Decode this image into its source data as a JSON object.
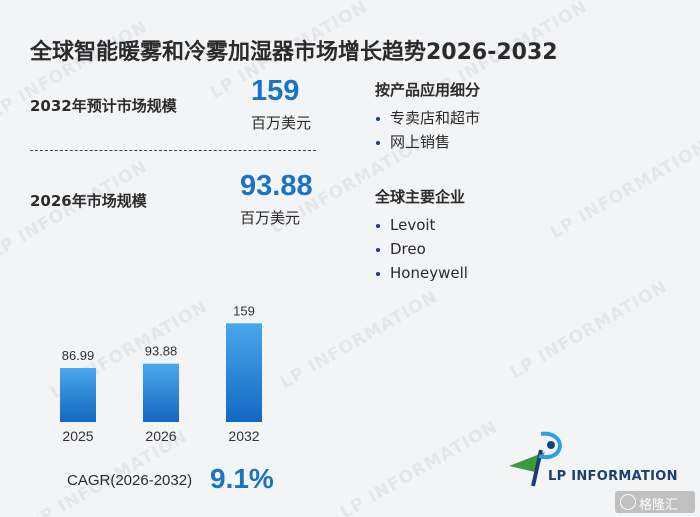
{
  "title": "全球智能暖雾和冷雾加湿器市场增长趋势2026-2032",
  "forecast": {
    "label": "2032年预计市场规模",
    "value": "159",
    "unit": "百万美元"
  },
  "base": {
    "label": "2026年市场规模",
    "value": "93.88",
    "unit": "百万美元"
  },
  "by_application": {
    "heading": "按产品应用细分",
    "items": [
      "专卖店和超市",
      "网上销售"
    ]
  },
  "companies": {
    "heading": "全球主要企业",
    "items": [
      "Levoit",
      "Dreo",
      "Honeywell"
    ]
  },
  "chart_data": {
    "type": "bar",
    "categories": [
      "2025",
      "2026",
      "2032"
    ],
    "values": [
      86.99,
      93.88,
      159
    ],
    "data_labels": [
      "86.99",
      "93.88",
      "159"
    ],
    "title": "",
    "xlabel": "",
    "ylabel": "",
    "ylim": [
      0,
      170
    ],
    "grid": false,
    "colors": {
      "bar_top": "#4aa8ec",
      "bar_bottom": "#1467c1"
    }
  },
  "cagr": {
    "label": "CAGR(2026-2032)",
    "value": "9.1%"
  },
  "watermark": "LP INFORMATION",
  "logo": {
    "text": "LP INFORMATION",
    "icon": "lp-information-logo"
  },
  "badge": {
    "text": "格隆汇",
    "icon": "gelonghui-icon"
  },
  "colors": {
    "accent": "#1a73c4",
    "text": "#2b2b2b",
    "background": "#f3f4f6"
  }
}
